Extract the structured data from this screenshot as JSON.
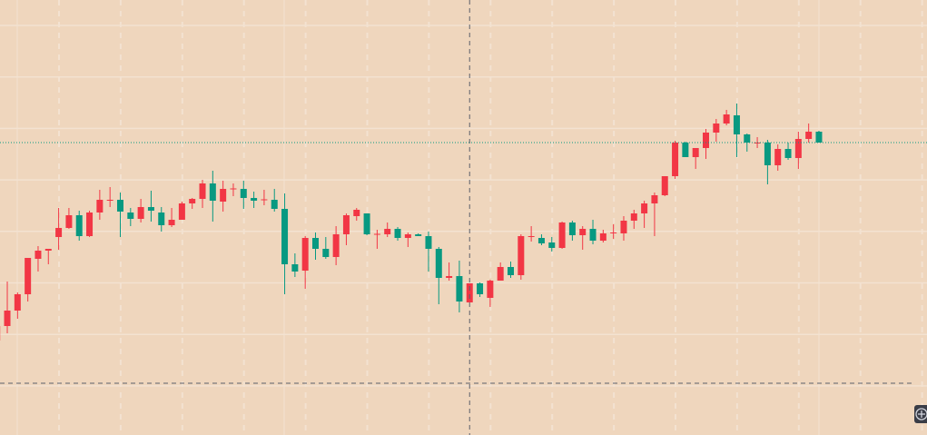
{
  "chart_data": {
    "type": "candlestick",
    "title": "",
    "xlabel": "",
    "ylabel": "",
    "grid": true,
    "colors": {
      "background": "#efd6bd",
      "up": "#f23645",
      "down": "#089981",
      "grid": "#f3e2d1",
      "crosshair": "#5d606b",
      "last_price_line": "#089981"
    },
    "fields": [
      "open",
      "high",
      "low",
      "close"
    ],
    "ohlc": [
      [
        102.5,
        104.1,
        102.4,
        104.1
      ],
      [
        104.1,
        109.0,
        103.3,
        105.8
      ],
      [
        105.8,
        107.8,
        104.9,
        107.6
      ],
      [
        107.6,
        111.6,
        106.8,
        111.6
      ],
      [
        111.5,
        112.9,
        110.1,
        112.4
      ],
      [
        112.4,
        112.6,
        110.9,
        112.6
      ],
      [
        113.9,
        117.1,
        112.5,
        114.9
      ],
      [
        114.9,
        117.1,
        114.8,
        116.3
      ],
      [
        116.3,
        116.8,
        113.5,
        114.0
      ],
      [
        114.0,
        116.8,
        113.9,
        116.6
      ],
      [
        116.6,
        119.1,
        115.8,
        118.0
      ],
      [
        118.0,
        119.4,
        117.2,
        118.0
      ],
      [
        118.0,
        118.8,
        113.9,
        116.7
      ],
      [
        116.6,
        117.1,
        115.1,
        115.9
      ],
      [
        115.9,
        118.1,
        115.5,
        117.2
      ],
      [
        117.2,
        119.0,
        115.6,
        116.8
      ],
      [
        116.6,
        117.2,
        114.5,
        115.2
      ],
      [
        115.2,
        117.1,
        115.0,
        115.8
      ],
      [
        115.8,
        117.8,
        115.8,
        117.6
      ],
      [
        117.6,
        118.2,
        117.0,
        118.1
      ],
      [
        118.1,
        120.2,
        117.1,
        119.8
      ],
      [
        119.8,
        121.2,
        115.6,
        117.9
      ],
      [
        117.8,
        120.1,
        116.7,
        119.2
      ],
      [
        119.2,
        119.8,
        118.4,
        119.25
      ],
      [
        119.2,
        120.1,
        117.0,
        118.2
      ],
      [
        118.2,
        118.9,
        117.1,
        117.9
      ],
      [
        118.0,
        119.1,
        117.4,
        118.05
      ],
      [
        118.0,
        119.2,
        116.7,
        117.0
      ],
      [
        117.0,
        118.7,
        107.6,
        110.9
      ],
      [
        110.9,
        112.1,
        109.5,
        110.1
      ],
      [
        110.2,
        114.0,
        108.2,
        113.8
      ],
      [
        113.8,
        114.4,
        111.4,
        112.6
      ],
      [
        112.6,
        113.9,
        111.5,
        111.7
      ],
      [
        111.7,
        115.1,
        110.8,
        114.2
      ],
      [
        114.2,
        116.5,
        113.0,
        116.3
      ],
      [
        116.2,
        117.1,
        115.7,
        116.9
      ],
      [
        116.5,
        116.5,
        114.1,
        114.2
      ],
      [
        114.2,
        114.7,
        112.6,
        114.25
      ],
      [
        114.2,
        115.5,
        113.9,
        114.8
      ],
      [
        114.8,
        115.0,
        113.5,
        113.8
      ],
      [
        113.8,
        114.4,
        112.8,
        114.2
      ],
      [
        114.2,
        114.3,
        114.0,
        114.0
      ],
      [
        114.0,
        114.5,
        110.1,
        112.6
      ],
      [
        112.6,
        112.8,
        106.5,
        109.4
      ],
      [
        109.4,
        111.1,
        109.1,
        109.6
      ],
      [
        109.6,
        111.3,
        105.6,
        106.8
      ],
      [
        106.7,
        108.8,
        106.7,
        108.8
      ],
      [
        108.8,
        108.9,
        107.3,
        107.6
      ],
      [
        107.2,
        109.2,
        106.2,
        109.1
      ],
      [
        109.1,
        111.1,
        109.1,
        110.6
      ],
      [
        110.6,
        111.2,
        109.4,
        109.7
      ],
      [
        109.7,
        114.2,
        109.2,
        114.0
      ],
      [
        114.0,
        115.1,
        113.4,
        114.0
      ],
      [
        113.8,
        114.2,
        113.0,
        113.2
      ],
      [
        113.3,
        113.9,
        112.3,
        112.7
      ],
      [
        112.7,
        115.6,
        112.6,
        115.5
      ],
      [
        115.5,
        115.7,
        113.5,
        114.1
      ],
      [
        114.1,
        115.1,
        112.5,
        114.8
      ],
      [
        114.8,
        115.8,
        113.1,
        113.5
      ],
      [
        113.5,
        114.7,
        113.3,
        114.3
      ],
      [
        114.4,
        115.3,
        113.7,
        114.4
      ],
      [
        114.3,
        116.2,
        113.5,
        115.7
      ],
      [
        115.7,
        116.9,
        114.8,
        116.5
      ],
      [
        116.5,
        117.9,
        114.9,
        117.6
      ],
      [
        117.6,
        118.8,
        114.0,
        118.5
      ],
      [
        118.5,
        120.6,
        118.4,
        120.6
      ],
      [
        120.6,
        124.5,
        120.3,
        124.3
      ],
      [
        124.3,
        124.4,
        122.7,
        122.7
      ],
      [
        122.7,
        123.7,
        121.4,
        123.7
      ],
      [
        123.7,
        125.8,
        122.5,
        125.4
      ],
      [
        125.4,
        126.9,
        124.4,
        126.4
      ],
      [
        126.4,
        127.9,
        126.2,
        127.4
      ],
      [
        127.3,
        128.6,
        122.7,
        125.2
      ],
      [
        125.2,
        125.3,
        123.3,
        124.3
      ],
      [
        124.3,
        124.9,
        123.7,
        124.3
      ],
      [
        124.3,
        124.6,
        119.7,
        121.8
      ],
      [
        121.8,
        124.1,
        121.2,
        123.6
      ],
      [
        123.6,
        124.3,
        122.4,
        122.6
      ],
      [
        122.6,
        125.5,
        121.4,
        124.7
      ],
      [
        124.7,
        126.4,
        124.3,
        125.5
      ],
      [
        125.5,
        125.6,
        124.3,
        124.3
      ]
    ],
    "last_price": 124.3,
    "crosshair_price": 97.8,
    "crosshair_bar_index": 46
  },
  "controls": {
    "zoom_icon": "circled-plus-icon"
  }
}
